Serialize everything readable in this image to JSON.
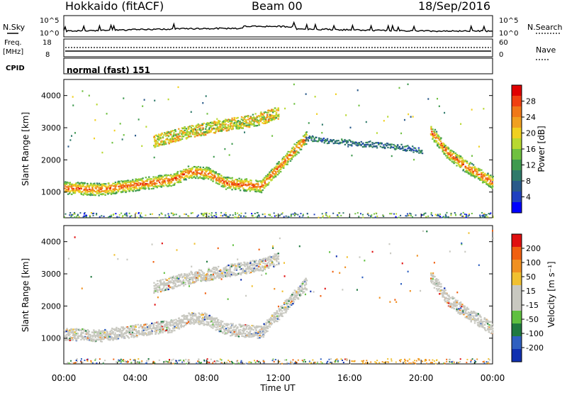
{
  "header": {
    "title": "Hokkaido (fitACF)",
    "beam": "Beam 00",
    "date": "18/Sep/2016"
  },
  "top_panels": {
    "nsky_label": "N.Sky",
    "nsky_scale_top": "10^5",
    "nsky_scale_bottom": "10^0",
    "nsearch_label": "N.Search",
    "nsearch_scale_top": "10^5",
    "nsearch_scale_bottom": "10^0",
    "freq_label": "Freq.",
    "freq_unit": "[MHz]",
    "freq_top": "18",
    "freq_bottom": "8",
    "nave_label": "Nave",
    "nave_top": "60",
    "nave_bottom": "0",
    "cpid_label": "CPID",
    "cpid_text": "normal (fast) 151"
  },
  "chart_data": [
    {
      "type": "heatmap",
      "ylabel": "Slant Range [km]",
      "xlabel": "Time UT",
      "x_ticks": [
        "00:00",
        "04:00",
        "08:00",
        "12:00",
        "16:00",
        "20:00",
        "00:00"
      ],
      "y_ticks": [
        "1000",
        "2000",
        "3000",
        "4000"
      ],
      "ylim": [
        200,
        4500
      ],
      "colorbar": {
        "label": "Power [dB]",
        "ticks": [
          "4",
          "8",
          "12",
          "16",
          "20",
          "24",
          "28"
        ],
        "colors": [
          "#0000ff",
          "#2040c0",
          "#2a5a8a",
          "#2f7a6a",
          "#3f9a4f",
          "#6fc040",
          "#b8d830",
          "#f0d020",
          "#f0a020",
          "#f07818",
          "#f04010",
          "#e00000"
        ]
      },
      "bands": [
        {
          "t": [
            0,
            2,
            4,
            6,
            7,
            8,
            9,
            11,
            12,
            13.5
          ],
          "r": [
            1150,
            1100,
            1250,
            1400,
            1650,
            1600,
            1300,
            1200,
            1800,
            2700
          ],
          "level": "high"
        },
        {
          "t": [
            20.5,
            21.5,
            22.5,
            24
          ],
          "r": [
            2900,
            2200,
            1800,
            1300
          ],
          "level": "high"
        },
        {
          "t": [
            5,
            7,
            9,
            11,
            12
          ],
          "r": [
            2600,
            2900,
            3100,
            3300,
            3500
          ],
          "level": "mid"
        },
        {
          "t": [
            13.5,
            15,
            17,
            19,
            20
          ],
          "r": [
            2700,
            2600,
            2500,
            2400,
            2300
          ],
          "level": "low"
        }
      ]
    },
    {
      "type": "heatmap",
      "ylabel": "Slant Range [km]",
      "xlabel": "Time UT",
      "x_ticks": [
        "00:00",
        "04:00",
        "08:00",
        "12:00",
        "16:00",
        "20:00",
        "00:00"
      ],
      "y_ticks": [
        "1000",
        "2000",
        "3000",
        "4000"
      ],
      "ylim": [
        200,
        4500
      ],
      "colorbar": {
        "label": "Velocity [m s⁻¹]",
        "ticks": [
          "200",
          "100",
          "50",
          "15",
          "-15",
          "-50",
          "-100",
          "-200"
        ],
        "colors": [
          "#1030b0",
          "#3060c0",
          "#207a40",
          "#60c040",
          "#c8c8c0",
          "#c8c8c0",
          "#f0c030",
          "#f09020",
          "#f06010",
          "#e01010"
        ]
      },
      "bands": [
        {
          "t": [
            0,
            2,
            4,
            6,
            7,
            8,
            9,
            11,
            12,
            13.5
          ],
          "r": [
            1150,
            1100,
            1250,
            1400,
            1650,
            1600,
            1300,
            1200,
            1800,
            2700
          ],
          "level": "ground"
        },
        {
          "t": [
            20.5,
            21.5,
            22.5,
            24
          ],
          "r": [
            2900,
            2200,
            1800,
            1300
          ],
          "level": "ground"
        },
        {
          "t": [
            5,
            7,
            9,
            11,
            12
          ],
          "r": [
            2600,
            2900,
            3100,
            3300,
            3500
          ],
          "level": "ground"
        }
      ]
    }
  ],
  "time_axis_label": "Time UT"
}
